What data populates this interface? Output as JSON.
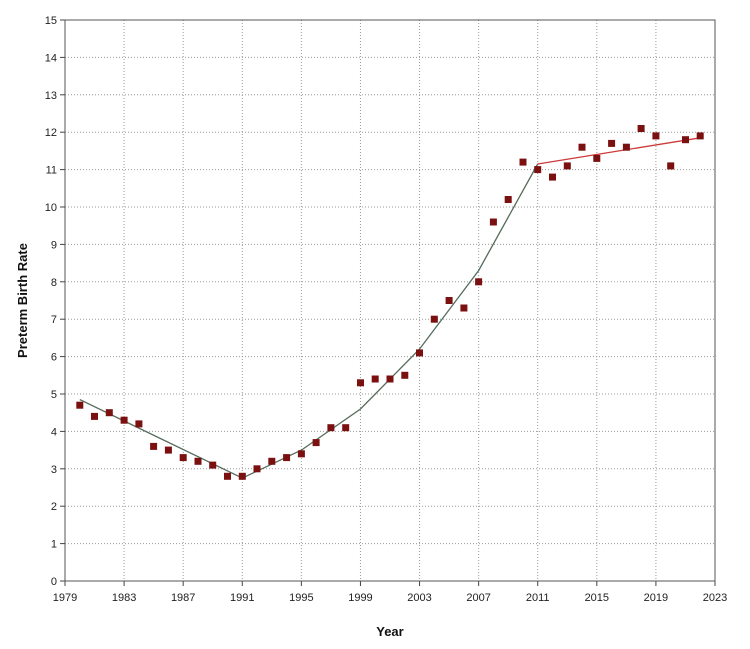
{
  "chart_data": {
    "type": "scatter",
    "title": "",
    "xlabel": "Year",
    "ylabel": "Preterm Birth Rate",
    "xlim": [
      1979,
      2023
    ],
    "ylim": [
      0,
      15
    ],
    "x_ticks": [
      1979,
      1983,
      1987,
      1991,
      1995,
      1999,
      2003,
      2007,
      2011,
      2015,
      2019,
      2023
    ],
    "y_ticks": [
      0,
      1,
      2,
      3,
      4,
      5,
      6,
      7,
      8,
      9,
      10,
      11,
      12,
      13,
      14,
      15
    ],
    "grid": true,
    "legend": "none",
    "series": [
      {
        "marker_color": "#7a1010",
        "points": [
          [
            1980,
            4.7
          ],
          [
            1981,
            4.4
          ],
          [
            1982,
            4.5
          ],
          [
            1983,
            4.3
          ],
          [
            1984,
            4.2
          ],
          [
            1985,
            3.6
          ],
          [
            1986,
            3.5
          ],
          [
            1987,
            3.3
          ],
          [
            1988,
            3.2
          ],
          [
            1989,
            3.1
          ],
          [
            1990,
            2.8
          ],
          [
            1991,
            2.8
          ],
          [
            1992,
            3.0
          ],
          [
            1993,
            3.2
          ],
          [
            1994,
            3.3
          ],
          [
            1995,
            3.4
          ],
          [
            1996,
            3.7
          ],
          [
            1997,
            4.1
          ],
          [
            1998,
            4.1
          ],
          [
            1999,
            5.3
          ],
          [
            2000,
            5.4
          ],
          [
            2001,
            5.4
          ],
          [
            2002,
            5.5
          ],
          [
            2003,
            6.1
          ],
          [
            2004,
            7.0
          ],
          [
            2005,
            7.5
          ],
          [
            2006,
            7.3
          ],
          [
            2007,
            8.0
          ],
          [
            2008,
            9.6
          ],
          [
            2009,
            10.2
          ],
          [
            2010,
            11.2
          ],
          [
            2011,
            11.0
          ],
          [
            2012,
            10.8
          ],
          [
            2013,
            11.1
          ],
          [
            2014,
            11.6
          ],
          [
            2015,
            11.3
          ],
          [
            2016,
            11.7
          ],
          [
            2017,
            11.6
          ],
          [
            2018,
            12.1
          ],
          [
            2019,
            11.9
          ],
          [
            2020,
            11.1
          ],
          [
            2021,
            11.8
          ],
          [
            2022,
            11.9
          ]
        ]
      }
    ],
    "fit_segments": [
      {
        "color": "#556b5a",
        "points": [
          [
            1980,
            4.85
          ],
          [
            1991,
            2.75
          ]
        ]
      },
      {
        "color": "#556b5a",
        "points": [
          [
            1991,
            2.75
          ],
          [
            1995,
            3.5
          ],
          [
            1999,
            4.6
          ],
          [
            2003,
            6.2
          ],
          [
            2007,
            8.3
          ],
          [
            2011,
            11.15
          ]
        ]
      },
      {
        "color": "#cc3a3a",
        "points": [
          [
            2011,
            11.15
          ],
          [
            2022,
            11.85
          ]
        ]
      }
    ]
  }
}
